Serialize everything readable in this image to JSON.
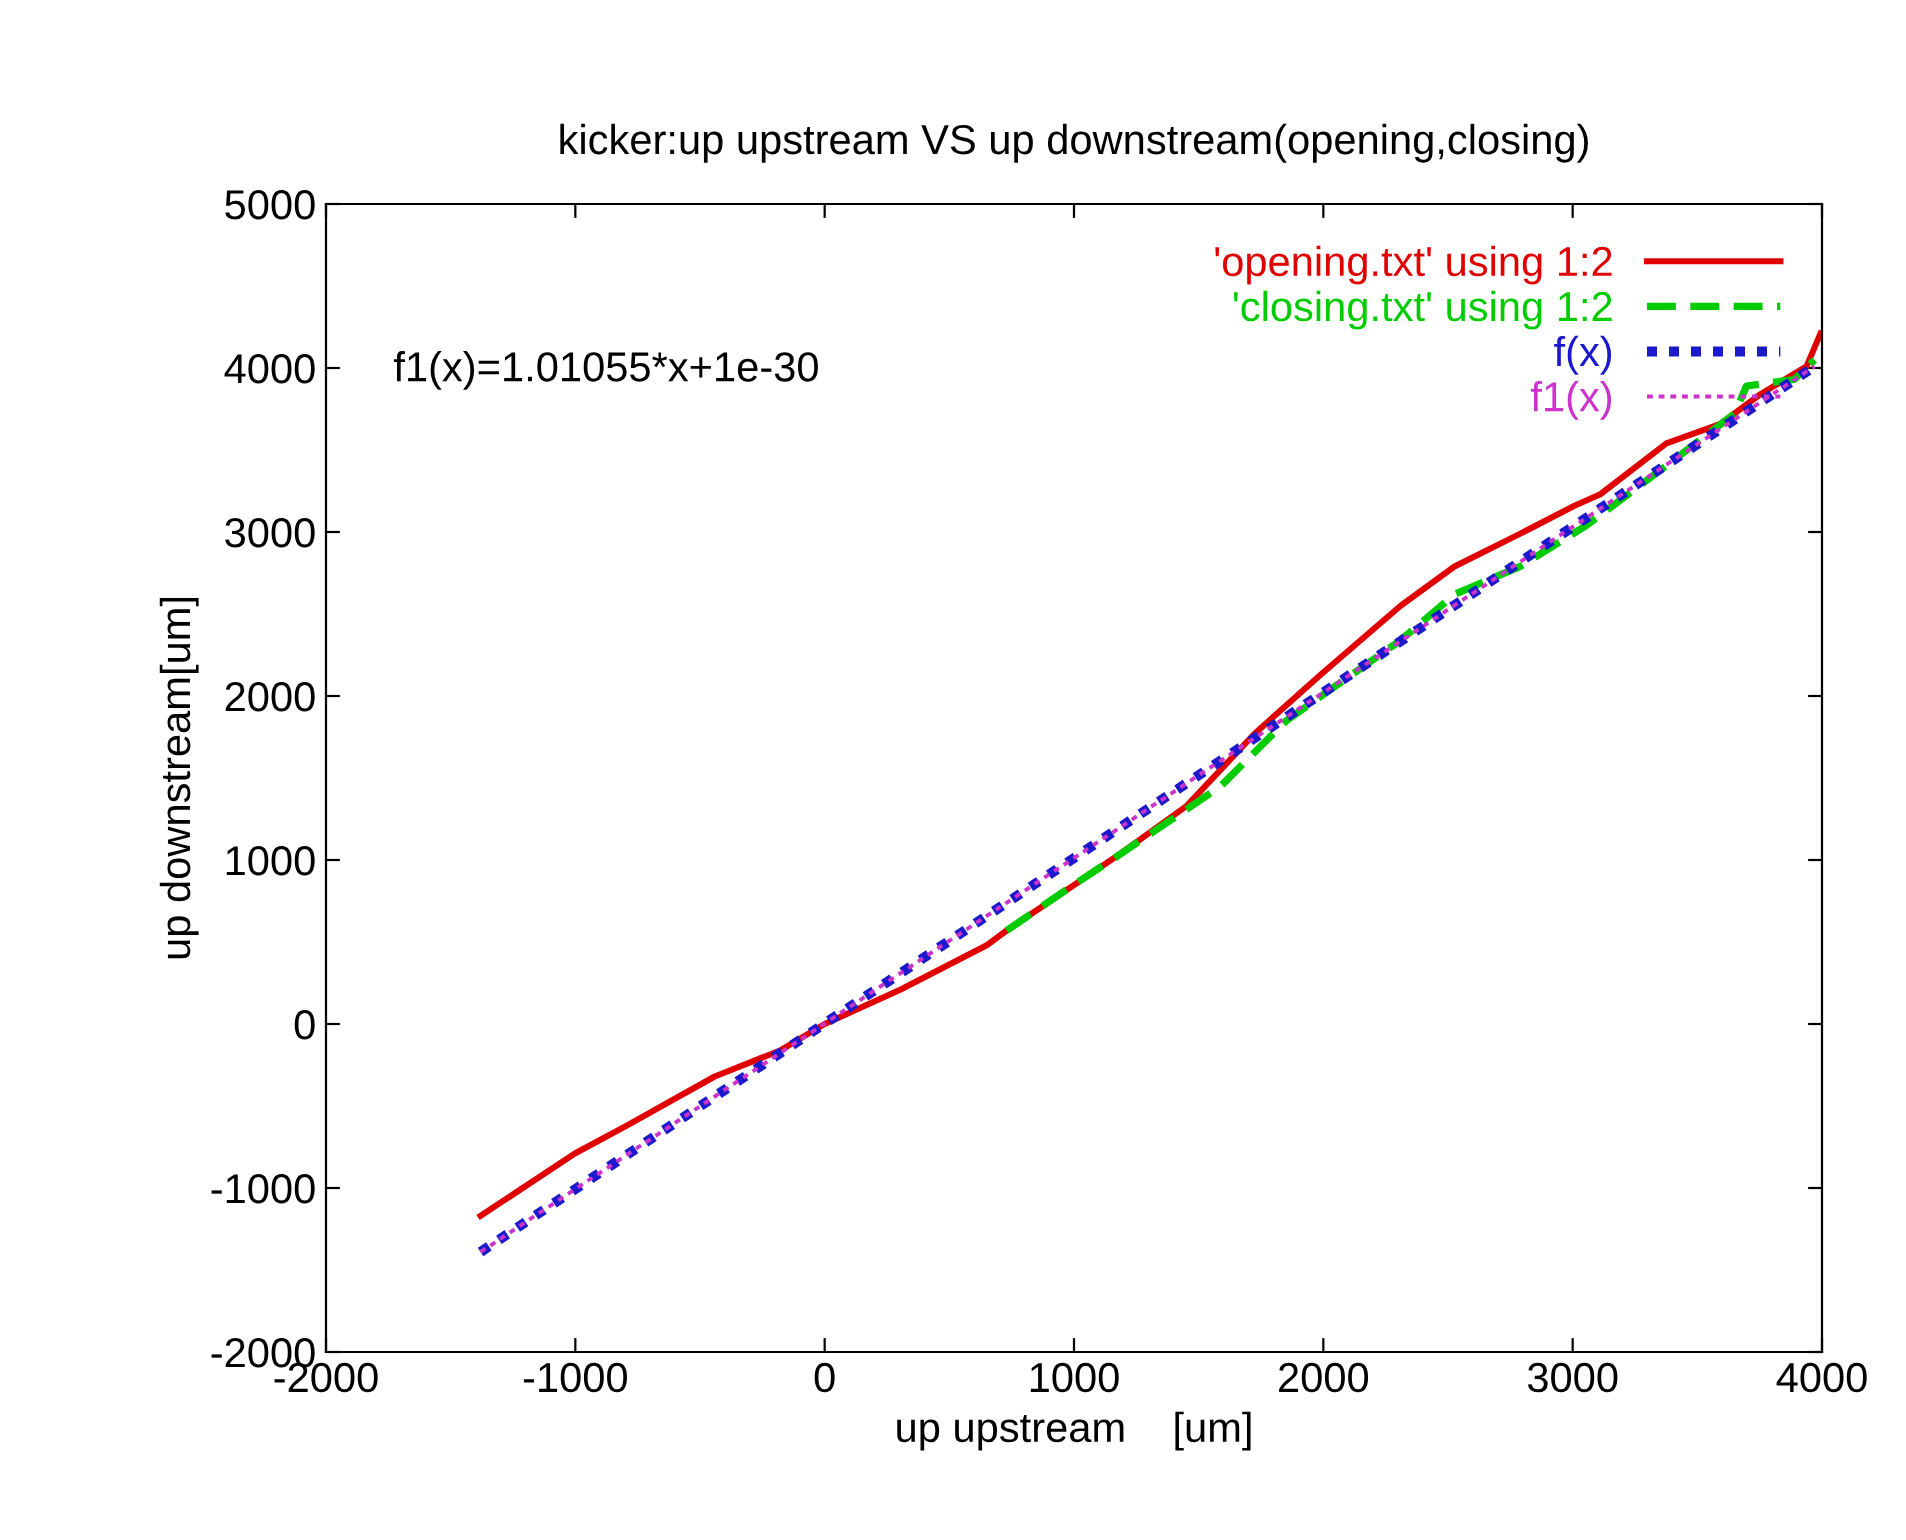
{
  "chart_data": {
    "type": "line",
    "title": "kicker:up upstream VS up downstream(opening,closing)",
    "xlabel": "up upstream    [um]",
    "ylabel": "up downstream[um]",
    "xlim": [
      -2000,
      4000
    ],
    "ylim": [
      -2000,
      5000
    ],
    "xticks": [
      -2000,
      -1000,
      0,
      1000,
      2000,
      3000,
      4000
    ],
    "yticks": [
      -2000,
      -1000,
      0,
      1000,
      2000,
      3000,
      4000,
      5000
    ],
    "grid": false,
    "legend": "top right",
    "annotations": [
      "f1(x)=1.01055*x+1e-30"
    ],
    "series": [
      {
        "name": "'opening.txt' using 1:2",
        "color": "#e00000",
        "line_style": "solid",
        "x": [
          -1380,
          -1002,
          -794,
          -441,
          -176,
          0,
          305,
          650,
          730,
          1187,
          1452,
          1724,
          1989,
          2310,
          2526,
          2790,
          3007,
          3111,
          3376,
          3593,
          3753,
          3938,
          3994
        ],
        "values": [
          -1170,
          -790,
          -620,
          -320,
          -160,
          0,
          210,
          480,
          570,
          1040,
          1330,
          1770,
          2130,
          2550,
          2790,
          2990,
          3160,
          3230,
          3540,
          3660,
          3840,
          4010,
          4210
        ]
      },
      {
        "name": "'closing.txt' using 1:2",
        "color": "#00cc00",
        "line_style": "dashed",
        "x": [
          730,
          1000,
          1200,
          1588,
          1852,
          2310,
          2526,
          2790,
          3055,
          3328,
          3649,
          3697,
          3889,
          3970
        ],
        "values": [
          570,
          850,
          1050,
          1450,
          1850,
          2340,
          2620,
          2790,
          3040,
          3350,
          3720,
          3890,
          3930,
          4050
        ]
      },
      {
        "name": "f(x)",
        "color": "#1a1acc",
        "line_style": "dotted",
        "x": [
          -1380,
          3970
        ],
        "values": [
          -1390,
          4010
        ]
      },
      {
        "name": "f1(x)",
        "color": "#cc33cc",
        "line_style": "dotted",
        "x": [
          -1380,
          3970
        ],
        "values": [
          -1390,
          4010
        ]
      }
    ]
  }
}
